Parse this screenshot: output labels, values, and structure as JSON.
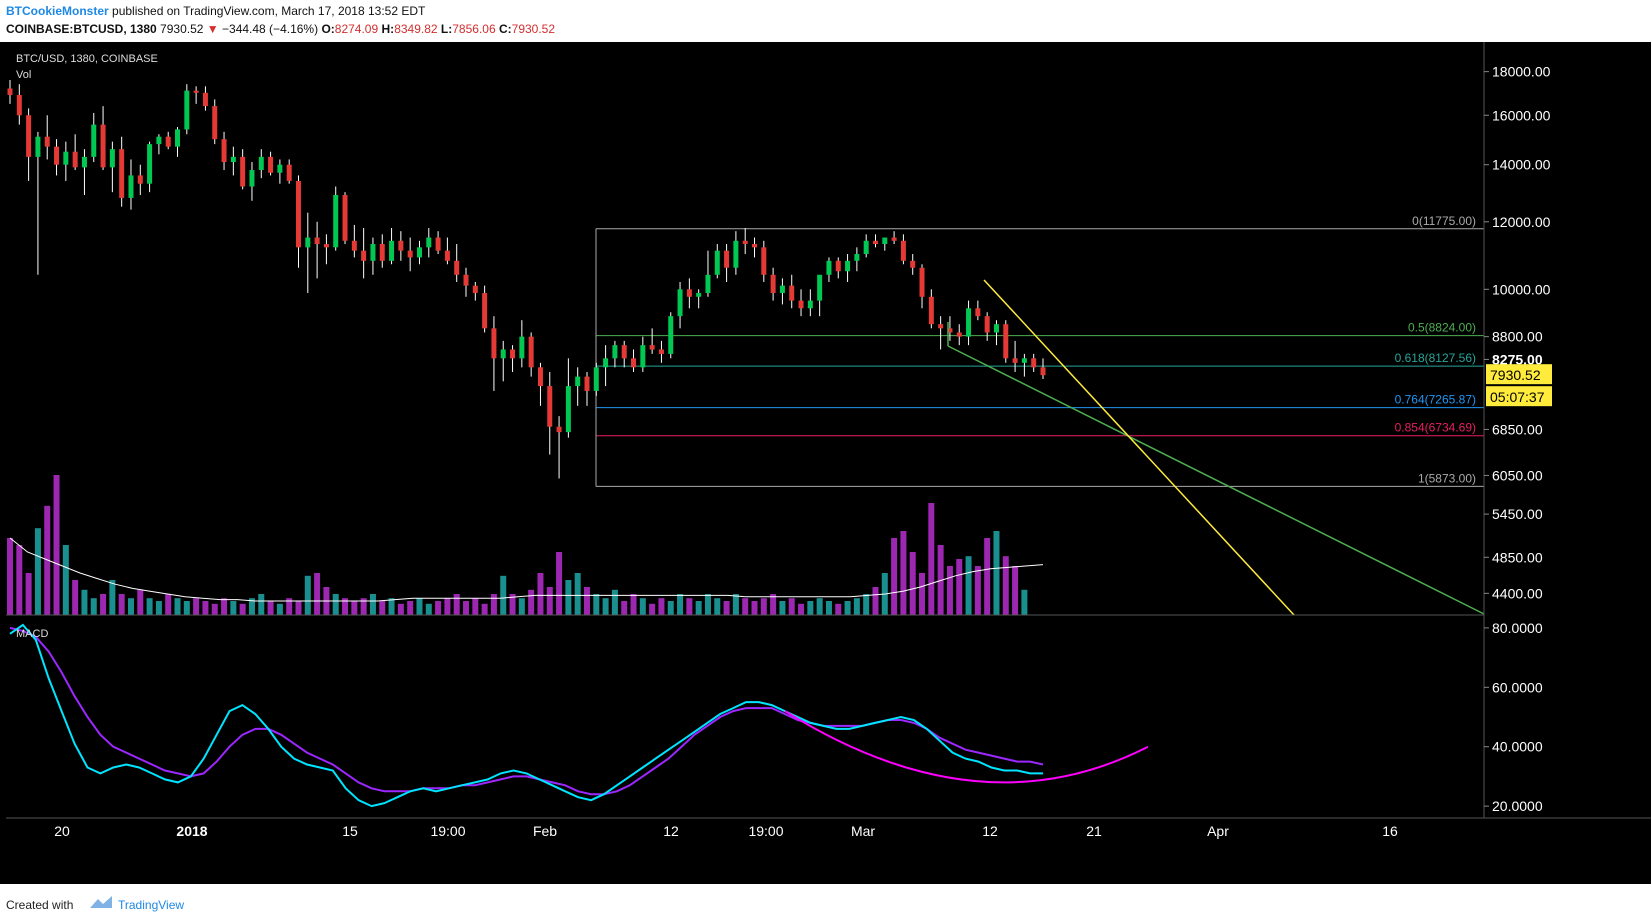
{
  "header": {
    "author": "BTCookieMonster",
    "published_text": "published on TradingView.com, March 17, 2018 13:52 EDT",
    "symbol": "COINBASE:BTCUSD, 1380",
    "last": "7930.52",
    "change": "−344.48 (−4.16%)",
    "o_label": "O:",
    "o_val": "8274.09",
    "h_label": "H:",
    "h_val": "8349.82",
    "l_label": "L:",
    "l_val": "7856.06",
    "c_label": "C:",
    "c_val": "7930.52"
  },
  "pane": {
    "title": "BTC/USD, 1380, COINBASE",
    "vol_label": "Vol",
    "macd_label": "MACD"
  },
  "footer": {
    "created_with": "Created with",
    "brand": "TradingView"
  },
  "colors": {
    "background": "#000000",
    "up": "#00c853",
    "down": "#e53935",
    "vol_teal": "#1a8f8f",
    "vol_purple": "#9c27b0",
    "macd": "#00e5ff",
    "signal": "#9c27ff",
    "curve": "#ff00ff",
    "trend_yellow": "#ffeb3b",
    "trend_green": "#4caf50",
    "price_label_bg": "#ffeb3b"
  },
  "chart_data": {
    "type": "candlestick",
    "price_axis": {
      "scale": "log",
      "ticks": [
        "18000.00",
        "16000.00",
        "14000.00",
        "12000.00",
        "10000.00",
        "8800.00",
        "8275.00",
        "6850.00",
        "6050.00",
        "5450.00",
        "4850.00",
        "4400.00"
      ],
      "range": [
        4150,
        19500
      ]
    },
    "macd_axis": {
      "ticks": [
        "80.0000",
        "60.0000",
        "40.0000",
        "20.0000"
      ],
      "range": [
        16,
        84
      ]
    },
    "time_ticks": [
      "20",
      "2018",
      "15",
      "19:00",
      "Feb",
      "12",
      "19:00",
      "Mar",
      "12",
      "21",
      "Apr",
      "16"
    ],
    "last_price_label": "7930.52",
    "countdown_label": "05:07:37",
    "fibonacci": [
      {
        "level": "0",
        "price": 11775.0,
        "label": "0(11775.00)"
      },
      {
        "level": "0.5",
        "price": 8824.0,
        "label": "0.5(8824.00)"
      },
      {
        "level": "0.618",
        "price": 8127.56,
        "label": "0.618(8127.56)"
      },
      {
        "level": "0.764",
        "price": 7265.87,
        "label": "0.764(7265.87)"
      },
      {
        "level": "0.854",
        "price": 6734.69,
        "label": "0.854(6734.69)"
      },
      {
        "level": "1",
        "price": 5873.0,
        "label": "1(5873.00)"
      }
    ],
    "candles_ohlc": [
      [
        17200,
        17600,
        16500,
        16900
      ],
      [
        16900,
        17400,
        15600,
        16000
      ],
      [
        16000,
        16300,
        13400,
        14300
      ],
      [
        14300,
        15300,
        10400,
        15100
      ],
      [
        15100,
        16000,
        14200,
        14700
      ],
      [
        14700,
        15000,
        13600,
        14000
      ],
      [
        14000,
        14900,
        13400,
        14500
      ],
      [
        14500,
        15200,
        13800,
        13900
      ],
      [
        13900,
        14600,
        12900,
        14300
      ],
      [
        14300,
        16100,
        14100,
        15600
      ],
      [
        15600,
        16400,
        13800,
        13900
      ],
      [
        13900,
        14900,
        13000,
        14600
      ],
      [
        14600,
        15100,
        12500,
        12800
      ],
      [
        12800,
        14200,
        12400,
        13600
      ],
      [
        13600,
        14000,
        12900,
        13300
      ],
      [
        13300,
        14900,
        13000,
        14800
      ],
      [
        14800,
        15200,
        14400,
        15100
      ],
      [
        15100,
        15300,
        14600,
        14700
      ],
      [
        14700,
        15500,
        14300,
        15400
      ],
      [
        15400,
        17400,
        15200,
        17100
      ],
      [
        17100,
        17300,
        16500,
        17000
      ],
      [
        17000,
        17300,
        16200,
        16400
      ],
      [
        16400,
        16700,
        14800,
        15000
      ],
      [
        15000,
        15300,
        13800,
        14100
      ],
      [
        14100,
        14700,
        13600,
        14300
      ],
      [
        14300,
        14600,
        13100,
        13200
      ],
      [
        13200,
        14100,
        12700,
        13800
      ],
      [
        13800,
        14600,
        13500,
        14300
      ],
      [
        14300,
        14500,
        13600,
        13700
      ],
      [
        13700,
        14200,
        13300,
        14000
      ],
      [
        14000,
        14200,
        13300,
        13400
      ],
      [
        13400,
        13600,
        10600,
        11200
      ],
      [
        11200,
        12300,
        9900,
        11500
      ],
      [
        11500,
        12000,
        10300,
        11300
      ],
      [
        11300,
        11600,
        10700,
        11200
      ],
      [
        11200,
        13200,
        11100,
        12900
      ],
      [
        12900,
        13000,
        11300,
        11400
      ],
      [
        11400,
        11900,
        10900,
        11100
      ],
      [
        11100,
        11800,
        10300,
        10800
      ],
      [
        10800,
        11500,
        10400,
        11300
      ],
      [
        11300,
        11600,
        10600,
        10800
      ],
      [
        10800,
        11800,
        10700,
        11400
      ],
      [
        11400,
        11700,
        10800,
        11100
      ],
      [
        11100,
        11500,
        10500,
        10900
      ],
      [
        10900,
        11400,
        10700,
        11200
      ],
      [
        11200,
        11800,
        10900,
        11500
      ],
      [
        11500,
        11700,
        11000,
        11100
      ],
      [
        11100,
        11500,
        10700,
        10800
      ],
      [
        10800,
        11300,
        10200,
        10400
      ],
      [
        10400,
        10600,
        9800,
        10100
      ],
      [
        10100,
        10200,
        9700,
        9900
      ],
      [
        9900,
        10100,
        8900,
        9000
      ],
      [
        9000,
        9300,
        7600,
        8300
      ],
      [
        8300,
        8700,
        7800,
        8500
      ],
      [
        8500,
        8600,
        8000,
        8300
      ],
      [
        8300,
        9200,
        8100,
        8800
      ],
      [
        8800,
        8900,
        7900,
        8100
      ],
      [
        8100,
        8200,
        7300,
        7700
      ],
      [
        7700,
        8000,
        6400,
        6900
      ],
      [
        6900,
        7100,
        6000,
        6800
      ],
      [
        6800,
        8300,
        6700,
        7700
      ],
      [
        7700,
        8100,
        7300,
        7900
      ],
      [
        7900,
        8000,
        7300,
        7600
      ],
      [
        7600,
        8200,
        7500,
        8100
      ],
      [
        8100,
        8600,
        7700,
        8300
      ],
      [
        8300,
        8700,
        8100,
        8600
      ],
      [
        8600,
        8700,
        8100,
        8300
      ],
      [
        8300,
        8500,
        8000,
        8100
      ],
      [
        8100,
        8800,
        8000,
        8600
      ],
      [
        8600,
        9000,
        8400,
        8500
      ],
      [
        8500,
        8700,
        8200,
        8400
      ],
      [
        8400,
        9400,
        8300,
        9300
      ],
      [
        9300,
        10200,
        9000,
        10000
      ],
      [
        10000,
        10300,
        9500,
        9800
      ],
      [
        9800,
        10000,
        9500,
        9900
      ],
      [
        9900,
        11100,
        9800,
        10400
      ],
      [
        10400,
        11300,
        10300,
        11100
      ],
      [
        11100,
        11300,
        10200,
        10600
      ],
      [
        10600,
        11700,
        10400,
        11400
      ],
      [
        11400,
        11800,
        11000,
        11300
      ],
      [
        11300,
        11500,
        10900,
        11200
      ],
      [
        11200,
        11400,
        10200,
        10400
      ],
      [
        10400,
        10600,
        9700,
        9900
      ],
      [
        9900,
        10300,
        9600,
        10100
      ],
      [
        10100,
        10400,
        9500,
        9700
      ],
      [
        9700,
        10000,
        9300,
        9500
      ],
      [
        9500,
        10000,
        9300,
        9700
      ],
      [
        9700,
        10300,
        9300,
        10400
      ],
      [
        10400,
        10900,
        10200,
        10800
      ],
      [
        10800,
        10900,
        10300,
        10500
      ],
      [
        10500,
        11000,
        10200,
        10800
      ],
      [
        10800,
        11200,
        10500,
        11000
      ],
      [
        11000,
        11600,
        10900,
        11400
      ],
      [
        11400,
        11600,
        11200,
        11300
      ],
      [
        11300,
        11500,
        11100,
        11500
      ],
      [
        11500,
        11700,
        11300,
        11400
      ],
      [
        11400,
        11600,
        10700,
        10800
      ],
      [
        10800,
        11000,
        10400,
        10600
      ],
      [
        10600,
        10700,
        9500,
        9800
      ],
      [
        9800,
        10000,
        9000,
        9100
      ],
      [
        9100,
        9300,
        8500,
        9000
      ],
      [
        9000,
        9300,
        8700,
        8900
      ],
      [
        8900,
        9100,
        8600,
        8800
      ],
      [
        8800,
        9700,
        8600,
        9500
      ],
      [
        9500,
        9700,
        9200,
        9300
      ],
      [
        9300,
        9400,
        8700,
        8900
      ],
      [
        8900,
        9200,
        8600,
        9100
      ],
      [
        9100,
        9200,
        8200,
        8300
      ],
      [
        8300,
        8700,
        8000,
        8200
      ],
      [
        8200,
        8400,
        7900,
        8300
      ],
      [
        8300,
        8400,
        8000,
        8100
      ],
      [
        8100,
        8300,
        7850,
        7930
      ]
    ],
    "volume_relative": [
      0.55,
      0.5,
      0.3,
      0.62,
      0.78,
      1.0,
      0.5,
      0.25,
      0.18,
      0.12,
      0.15,
      0.25,
      0.15,
      0.12,
      0.18,
      0.12,
      0.1,
      0.15,
      0.12,
      0.1,
      0.12,
      0.1,
      0.08,
      0.12,
      0.1,
      0.08,
      0.12,
      0.15,
      0.1,
      0.08,
      0.12,
      0.1,
      0.28,
      0.3,
      0.2,
      0.15,
      0.12,
      0.1,
      0.12,
      0.15,
      0.1,
      0.12,
      0.08,
      0.1,
      0.12,
      0.08,
      0.1,
      0.12,
      0.15,
      0.1,
      0.12,
      0.08,
      0.15,
      0.28,
      0.15,
      0.12,
      0.18,
      0.3,
      0.2,
      0.45,
      0.25,
      0.3,
      0.2,
      0.15,
      0.12,
      0.18,
      0.1,
      0.15,
      0.12,
      0.08,
      0.12,
      0.1,
      0.15,
      0.12,
      0.1,
      0.15,
      0.12,
      0.1,
      0.15,
      0.12,
      0.1,
      0.12,
      0.15,
      0.1,
      0.12,
      0.08,
      0.1,
      0.12,
      0.1,
      0.08,
      0.1,
      0.12,
      0.15,
      0.2,
      0.3,
      0.55,
      0.6,
      0.45,
      0.3,
      0.8,
      0.5,
      0.35,
      0.4,
      0.42,
      0.35,
      0.55,
      0.6,
      0.42,
      0.35,
      0.18
    ],
    "vol_ma_relative": [
      0.55,
      0.45,
      0.4,
      0.35,
      0.3,
      0.26,
      0.22,
      0.19,
      0.17,
      0.15,
      0.13,
      0.12,
      0.11,
      0.11,
      0.1,
      0.1,
      0.1,
      0.1,
      0.1,
      0.1,
      0.1,
      0.1,
      0.11,
      0.12,
      0.12,
      0.12,
      0.12,
      0.12,
      0.12,
      0.13,
      0.14,
      0.14,
      0.14,
      0.14,
      0.14,
      0.14,
      0.14,
      0.14,
      0.14,
      0.14,
      0.14,
      0.14,
      0.13,
      0.13,
      0.13,
      0.13,
      0.13,
      0.13,
      0.13,
      0.14,
      0.15,
      0.17,
      0.2,
      0.24,
      0.28,
      0.31,
      0.33,
      0.34,
      0.35,
      0.36
    ],
    "macd_line": [
      78,
      81,
      76,
      63,
      52,
      41,
      33,
      31,
      33,
      34,
      33,
      31,
      29,
      28,
      30,
      36,
      44,
      52,
      54,
      51,
      46,
      40,
      36,
      34,
      33,
      32,
      26,
      22,
      20,
      21,
      23,
      25,
      26,
      25,
      26,
      27,
      28,
      29,
      31,
      32,
      31,
      29,
      27,
      25,
      23,
      22,
      24,
      27,
      30,
      33,
      36,
      39,
      42,
      45,
      48,
      51,
      53,
      55,
      55,
      54,
      52,
      50,
      48,
      47,
      46,
      46,
      47,
      48,
      49,
      50,
      49,
      46,
      42,
      38,
      36,
      35,
      33,
      32,
      32,
      31,
      31
    ],
    "signal_line": [
      80,
      79,
      77,
      72,
      65,
      57,
      50,
      44,
      40,
      38,
      36,
      34,
      32,
      31,
      30,
      31,
      35,
      40,
      44,
      46,
      46,
      44,
      41,
      38,
      36,
      34,
      31,
      28,
      26,
      25,
      25,
      25,
      26,
      26,
      26,
      27,
      27,
      28,
      29,
      30,
      30,
      29,
      28,
      27,
      25,
      24,
      24,
      25,
      27,
      30,
      33,
      36,
      40,
      44,
      47,
      50,
      52,
      53,
      53,
      53,
      51,
      49,
      48,
      47,
      47,
      47,
      47,
      48,
      49,
      49,
      48,
      46,
      43,
      41,
      39,
      38,
      37,
      36,
      35,
      35,
      34
    ]
  }
}
